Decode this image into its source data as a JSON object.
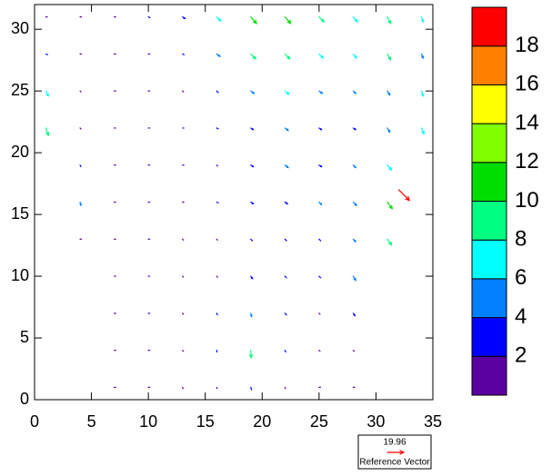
{
  "chart_data": {
    "type": "quiver",
    "xlim": [
      0,
      35
    ],
    "xticks": [
      0,
      5,
      10,
      15,
      20,
      25,
      30,
      35
    ],
    "ylim": [
      0,
      32
    ],
    "yticks": [
      0,
      5,
      10,
      15,
      20,
      25,
      30
    ],
    "x": [
      1,
      4,
      7,
      10,
      13,
      16,
      19,
      22,
      25,
      28,
      31,
      34,
      1,
      4,
      7,
      10,
      13,
      16,
      19,
      22,
      25,
      28,
      31,
      34,
      1,
      4,
      7,
      10,
      13,
      16,
      19,
      22,
      25,
      28,
      31,
      34,
      1,
      4,
      7,
      10,
      13,
      16,
      19,
      22,
      25,
      28,
      31,
      34,
      4,
      7,
      10,
      13,
      16,
      19,
      22,
      25,
      28,
      31,
      4,
      7,
      10,
      13,
      16,
      19,
      22,
      25,
      28,
      31,
      4,
      7,
      10,
      13,
      16,
      19,
      22,
      25,
      28,
      31,
      7,
      10,
      13,
      16,
      19,
      22,
      25,
      28,
      7,
      10,
      13,
      16,
      19,
      22,
      25,
      28,
      7,
      10,
      13,
      16,
      19,
      22,
      25,
      28,
      7,
      10,
      13,
      16,
      19,
      22,
      25,
      28,
      32
    ],
    "y": [
      31,
      31,
      31,
      31,
      31,
      31,
      31,
      31,
      31,
      31,
      31,
      31,
      28,
      28,
      28,
      28,
      28,
      28,
      28,
      28,
      28,
      28,
      28,
      28,
      25,
      25,
      25,
      25,
      25,
      25,
      25,
      25,
      25,
      25,
      25,
      25,
      22,
      22,
      22,
      22,
      22,
      22,
      22,
      22,
      22,
      22,
      22,
      22,
      19,
      19,
      19,
      19,
      19,
      19,
      19,
      19,
      19,
      19,
      16,
      16,
      16,
      16,
      16,
      16,
      16,
      16,
      16,
      16,
      13,
      13,
      13,
      13,
      13,
      13,
      13,
      13,
      13,
      13,
      10,
      10,
      10,
      10,
      10,
      10,
      10,
      10,
      7,
      7,
      7,
      7,
      7,
      7,
      7,
      7,
      4,
      4,
      4,
      4,
      4,
      4,
      4,
      4,
      1,
      1,
      1,
      1,
      1,
      1,
      1,
      1,
      17
    ],
    "u": [
      1,
      1,
      1,
      2,
      3,
      5,
      7,
      7,
      6,
      5,
      4,
      2,
      2,
      1,
      1,
      1,
      2,
      4,
      6,
      6,
      5,
      4,
      4,
      2,
      3,
      1,
      0.5,
      1,
      1,
      2,
      4,
      5,
      4,
      3,
      3,
      2,
      3,
      1,
      0.5,
      0.5,
      1,
      2,
      3,
      4,
      3,
      3,
      3,
      3,
      1,
      0.5,
      0.5,
      1,
      1,
      3,
      4,
      3,
      3,
      5,
      1,
      0.5,
      1,
      1,
      2,
      3,
      3,
      3,
      4,
      6,
      0.5,
      0.5,
      1,
      1,
      1,
      2,
      2,
      2,
      3,
      5,
      0.5,
      1,
      1,
      1,
      2,
      2,
      2,
      3,
      0.5,
      0.5,
      1,
      1,
      1,
      2,
      1,
      2,
      0.5,
      0.5,
      1,
      0.5,
      0.5,
      1,
      1,
      1,
      0.5,
      0.5,
      0.5,
      0.5,
      1,
      0.5,
      0.5,
      0.5,
      13
    ],
    "v": [
      0,
      0,
      0,
      -1,
      -2,
      -5,
      -8,
      -8,
      -6,
      -6,
      -8,
      -6,
      -1,
      0,
      0,
      0,
      -1,
      -3,
      -6,
      -6,
      -5,
      -5,
      -7,
      -5,
      -6,
      -1,
      0,
      0,
      -1,
      -2,
      -3,
      -4,
      -3,
      -3,
      -5,
      -6,
      -9,
      -1,
      0,
      0,
      0,
      -1,
      -2,
      -3,
      -2,
      -2,
      -5,
      -7,
      -2,
      0,
      0,
      0,
      -1,
      -2,
      -3,
      -2,
      -3,
      -6,
      -4,
      0,
      0,
      0,
      -1,
      -2,
      -2,
      -3,
      -4,
      -8,
      0,
      0,
      0,
      -1,
      -1,
      -2,
      -2,
      -2,
      -3,
      -7,
      0,
      0,
      -1,
      -1,
      -3,
      -2,
      -2,
      -5,
      0,
      0,
      -1,
      -2,
      -4,
      -2,
      -1,
      -3,
      0,
      0,
      -1,
      -2,
      -9,
      -2,
      -1,
      -1,
      0,
      0,
      -1,
      -1,
      -3,
      -1,
      0,
      0,
      -13
    ],
    "colorbar": {
      "levels": [
        0,
        2,
        4,
        6,
        8,
        10,
        12,
        14,
        16,
        18,
        20
      ],
      "colors": [
        "#5a00a0",
        "#0000ff",
        "#0080ff",
        "#00ffff",
        "#00ff80",
        "#00dd00",
        "#80ff00",
        "#ffff00",
        "#ff8000",
        "#ff0000"
      ],
      "ticks": [
        2,
        4,
        6,
        8,
        10,
        12,
        14,
        16,
        18
      ]
    },
    "reference_vector": {
      "value": 19.96,
      "label": "Reference Vector",
      "color": "#ff0000"
    }
  }
}
